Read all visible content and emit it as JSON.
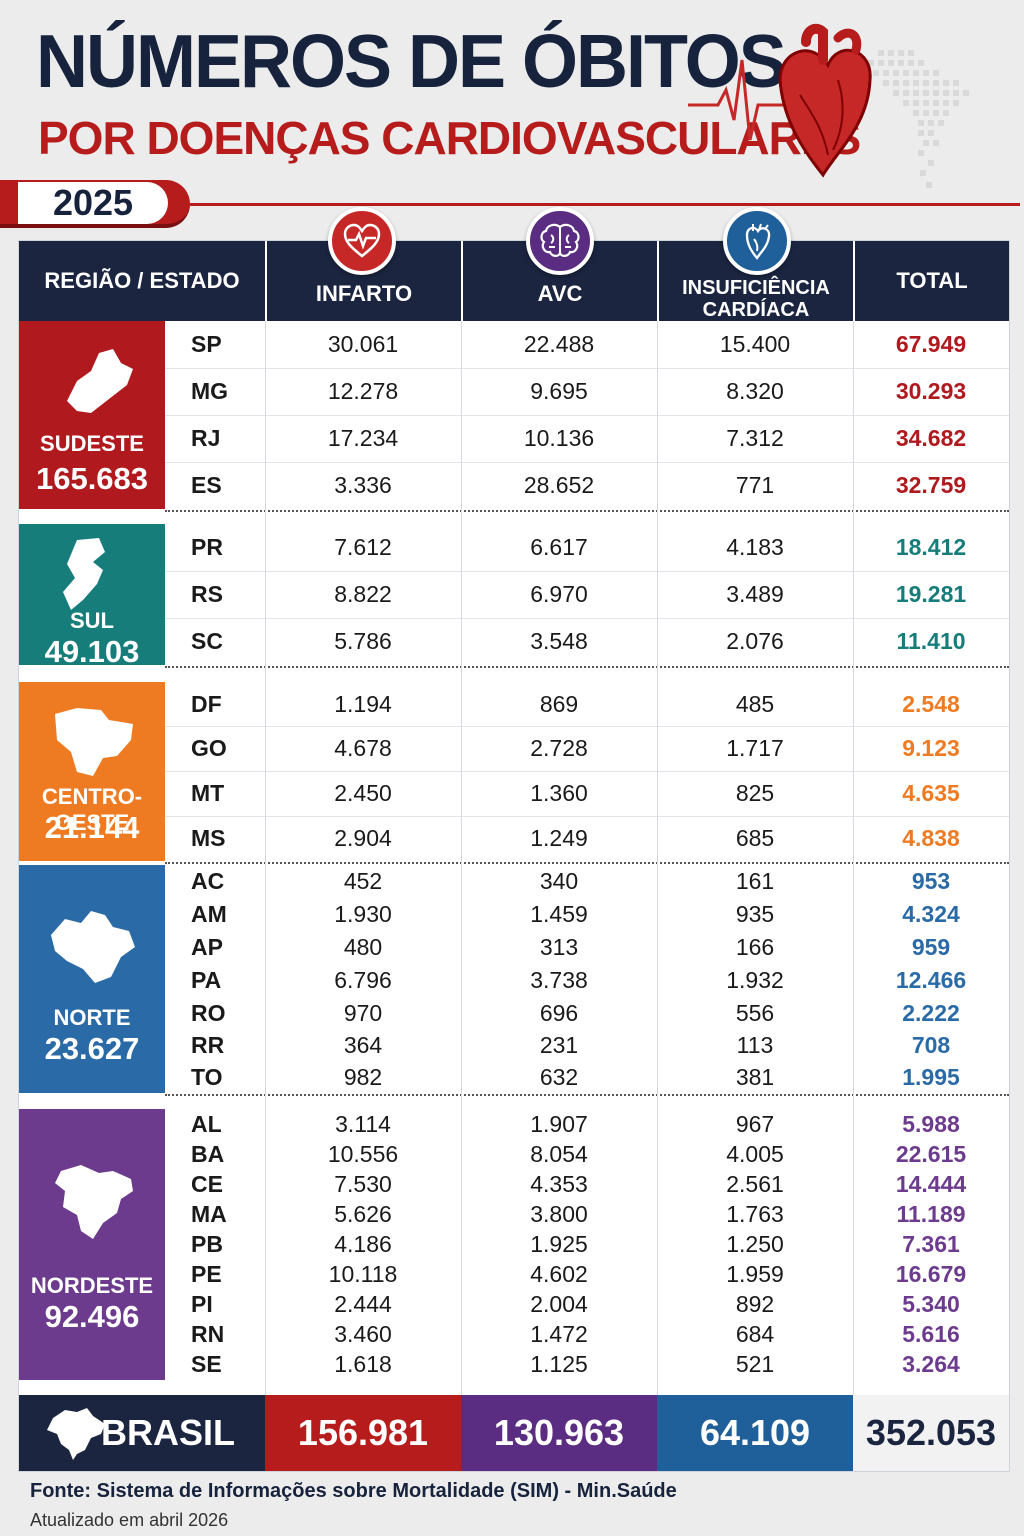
{
  "header": {
    "title": "NÚMEROS DE ÓBITOS",
    "subtitle": "POR DOENÇAS CARDIOVASCULARES",
    "year": "2025"
  },
  "colors": {
    "navy": "#1b2540",
    "red": "#b71c1c",
    "sudeste": "#b0191e",
    "sul": "#167d7a",
    "centro_oeste": "#ee7b22",
    "norte": "#2a6aa6",
    "nordeste": "#6d3b8e",
    "infarto": "#b71c1c",
    "avc": "#5b2d82",
    "insuficiencia": "#1f5f9a"
  },
  "columns": {
    "region": "REGIÃO / ESTADO",
    "infarto": "INFARTO",
    "avc": "AVC",
    "insuficiencia": "INSUFICIÊNCIA CARDÍACA",
    "total": "TOTAL"
  },
  "column_icons": [
    "heart-pulse-icon",
    "brain-icon",
    "heart-anatomy-icon"
  ],
  "regions": [
    {
      "name": "SUDESTE",
      "total": "165.683",
      "icon": "sudeste-map-icon",
      "rows": [
        {
          "uf": "SP",
          "infarto": "30.061",
          "avc": "22.488",
          "ic": "15.400",
          "total": "67.949"
        },
        {
          "uf": "MG",
          "infarto": "12.278",
          "avc": "9.695",
          "ic": "8.320",
          "total": "30.293"
        },
        {
          "uf": "RJ",
          "infarto": "17.234",
          "avc": "10.136",
          "ic": "7.312",
          "total": "34.682"
        },
        {
          "uf": "ES",
          "infarto": "3.336",
          "avc": "28.652",
          "ic": "771",
          "total": "32.759"
        }
      ]
    },
    {
      "name": "SUL",
      "total": "49.103",
      "icon": "sul-map-icon",
      "rows": [
        {
          "uf": "PR",
          "infarto": "7.612",
          "avc": "6.617",
          "ic": "4.183",
          "total": "18.412"
        },
        {
          "uf": "RS",
          "infarto": "8.822",
          "avc": "6.970",
          "ic": "3.489",
          "total": "19.281"
        },
        {
          "uf": "SC",
          "infarto": "5.786",
          "avc": "3.548",
          "ic": "2.076",
          "total": "11.410"
        }
      ]
    },
    {
      "name": "CENTRO-OESTE",
      "total": "21.144",
      "icon": "centro-oeste-map-icon",
      "rows": [
        {
          "uf": "DF",
          "infarto": "1.194",
          "avc": "869",
          "ic": "485",
          "total": "2.548"
        },
        {
          "uf": "GO",
          "infarto": "4.678",
          "avc": "2.728",
          "ic": "1.717",
          "total": "9.123"
        },
        {
          "uf": "MT",
          "infarto": "2.450",
          "avc": "1.360",
          "ic": "825",
          "total": "4.635"
        },
        {
          "uf": "MS",
          "infarto": "2.904",
          "avc": "1.249",
          "ic": "685",
          "total": "4.838"
        }
      ]
    },
    {
      "name": "NORTE",
      "total": "23.627",
      "icon": "norte-map-icon",
      "rows": [
        {
          "uf": "AC",
          "infarto": "452",
          "avc": "340",
          "ic": "161",
          "total": "953"
        },
        {
          "uf": "AM",
          "infarto": "1.930",
          "avc": "1.459",
          "ic": "935",
          "total": "4.324"
        },
        {
          "uf": "AP",
          "infarto": "480",
          "avc": "313",
          "ic": "166",
          "total": "959"
        },
        {
          "uf": "PA",
          "infarto": "6.796",
          "avc": "3.738",
          "ic": "1.932",
          "total": "12.466"
        },
        {
          "uf": "RO",
          "infarto": "970",
          "avc": "696",
          "ic": "556",
          "total": "2.222"
        },
        {
          "uf": "RR",
          "infarto": "364",
          "avc": "231",
          "ic": "113",
          "total": "708"
        },
        {
          "uf": "TO",
          "infarto": "982",
          "avc": "632",
          "ic": "381",
          "total": "1.995"
        }
      ]
    },
    {
      "name": "NORDESTE",
      "total": "92.496",
      "icon": "nordeste-map-icon",
      "rows": [
        {
          "uf": "AL",
          "infarto": "3.114",
          "avc": "1.907",
          "ic": "967",
          "total": "5.988"
        },
        {
          "uf": "BA",
          "infarto": "10.556",
          "avc": "8.054",
          "ic": "4.005",
          "total": "22.615"
        },
        {
          "uf": "CE",
          "infarto": "7.530",
          "avc": "4.353",
          "ic": "2.561",
          "total": "14.444"
        },
        {
          "uf": "MA",
          "infarto": "5.626",
          "avc": "3.800",
          "ic": "1.763",
          "total": "11.189"
        },
        {
          "uf": "PB",
          "infarto": "4.186",
          "avc": "1.925",
          "ic": "1.250",
          "total": "7.361"
        },
        {
          "uf": "PE",
          "infarto": "10.118",
          "avc": "4.602",
          "ic": "1.959",
          "total": "16.679"
        },
        {
          "uf": "PI",
          "infarto": "2.444",
          "avc": "2.004",
          "ic": "892",
          "total": "5.340"
        },
        {
          "uf": "RN",
          "infarto": "3.460",
          "avc": "1.472",
          "ic": "684",
          "total": "5.616"
        },
        {
          "uf": "SE",
          "infarto": "1.618",
          "avc": "1.125",
          "ic": "521",
          "total": "3.264"
        }
      ]
    }
  ],
  "brasil": {
    "label": "BRASIL",
    "infarto": "156.981",
    "avc": "130.963",
    "ic": "64.109",
    "total": "352.053"
  },
  "footer": {
    "source": "Fonte: Sistema de Informações sobre Mortalidade (SIM) - Min.Saúde",
    "updated": "Atualizado em abril 2026"
  }
}
